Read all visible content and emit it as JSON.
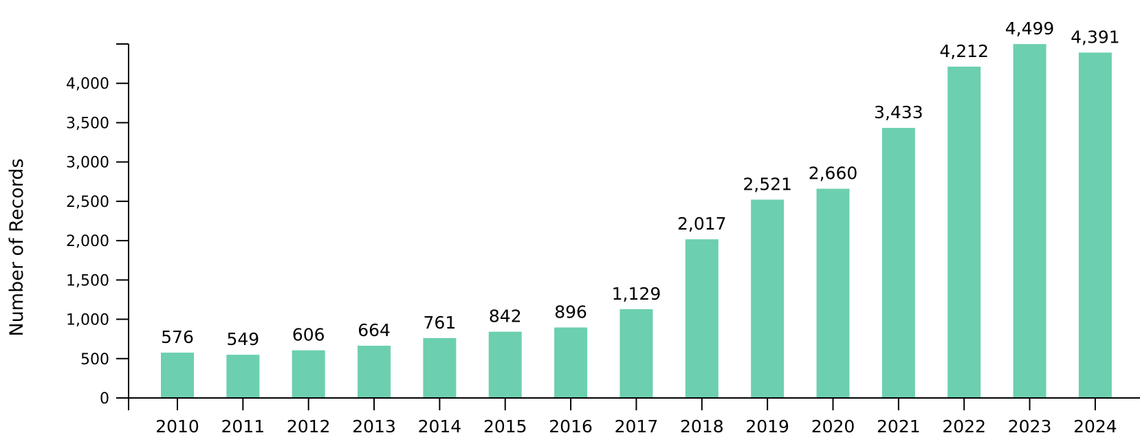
{
  "chart_data": {
    "type": "bar",
    "title": "",
    "xlabel": "",
    "ylabel": "Number of Records",
    "categories": [
      "2010",
      "2011",
      "2012",
      "2013",
      "2014",
      "2015",
      "2016",
      "2017",
      "2018",
      "2019",
      "2020",
      "2021",
      "2022",
      "2023",
      "2024"
    ],
    "values": [
      576,
      549,
      606,
      664,
      761,
      842,
      896,
      1129,
      2017,
      2521,
      2660,
      3433,
      4212,
      4499,
      4391
    ],
    "value_labels": [
      "576",
      "549",
      "606",
      "664",
      "761",
      "842",
      "896",
      "1,129",
      "2,017",
      "2,521",
      "2,660",
      "3,433",
      "4,212",
      "4,499",
      "4,391"
    ],
    "y_ticks": [
      0,
      500,
      1000,
      1500,
      2000,
      2500,
      3000,
      3500,
      4000
    ],
    "y_tick_labels": [
      "0",
      "500",
      "1,000",
      "1,500",
      "2,000",
      "2,500",
      "3,000",
      "3,500",
      "4,000"
    ],
    "ylim": [
      0,
      4500
    ],
    "grid": false,
    "legend": "none",
    "bar_color": "#6CCFB0",
    "axis_color": "#000000"
  }
}
